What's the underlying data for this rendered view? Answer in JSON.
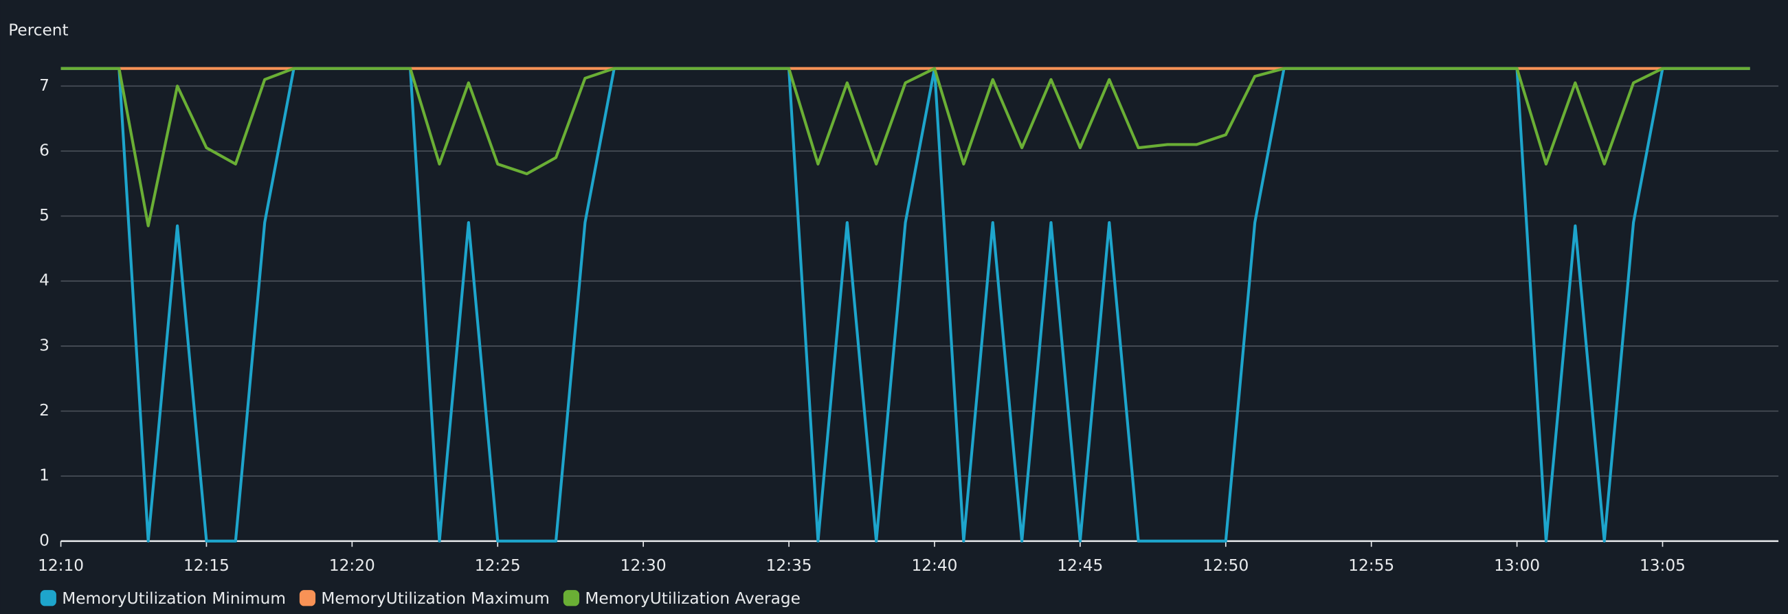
{
  "chart_data": {
    "type": "line",
    "y_label": "Percent",
    "x": [
      "12:10",
      "12:11",
      "12:12",
      "12:13",
      "12:14",
      "12:15",
      "12:16",
      "12:17",
      "12:18",
      "12:19",
      "12:20",
      "12:21",
      "12:22",
      "12:23",
      "12:24",
      "12:25",
      "12:26",
      "12:27",
      "12:28",
      "12:29",
      "12:30",
      "12:31",
      "12:32",
      "12:33",
      "12:34",
      "12:35",
      "12:36",
      "12:37",
      "12:38",
      "12:39",
      "12:40",
      "12:41",
      "12:42",
      "12:43",
      "12:44",
      "12:45",
      "12:46",
      "12:47",
      "12:48",
      "12:49",
      "12:50",
      "12:51",
      "12:52",
      "12:53",
      "12:54",
      "12:55",
      "12:56",
      "12:57",
      "12:58",
      "12:59",
      "13:00",
      "13:01",
      "13:02",
      "13:03",
      "13:04",
      "13:05",
      "13:06",
      "13:07",
      "13:08"
    ],
    "series": [
      {
        "name": "MemoryUtilization Minimum",
        "color": "#1ea5cc",
        "values": [
          7.27,
          7.27,
          7.27,
          0,
          4.85,
          0,
          0,
          4.9,
          7.27,
          7.27,
          7.27,
          7.27,
          7.27,
          0,
          4.9,
          0,
          0,
          0,
          4.9,
          7.27,
          7.27,
          7.27,
          7.27,
          7.27,
          7.27,
          7.27,
          0,
          4.9,
          0,
          4.9,
          7.27,
          0,
          4.9,
          0,
          4.9,
          0,
          4.9,
          0,
          0,
          0,
          0,
          4.9,
          7.27,
          7.27,
          7.27,
          7.27,
          7.27,
          7.27,
          7.27,
          7.27,
          7.27,
          0,
          4.85,
          0,
          4.9,
          7.27,
          7.27,
          7.27,
          7.27
        ]
      },
      {
        "name": "MemoryUtilization Maximum",
        "color": "#f89256",
        "values": [
          7.27,
          7.27,
          7.27,
          7.27,
          7.27,
          7.27,
          7.27,
          7.27,
          7.27,
          7.27,
          7.27,
          7.27,
          7.27,
          7.27,
          7.27,
          7.27,
          7.27,
          7.27,
          7.27,
          7.27,
          7.27,
          7.27,
          7.27,
          7.27,
          7.27,
          7.27,
          7.27,
          7.27,
          7.27,
          7.27,
          7.27,
          7.27,
          7.27,
          7.27,
          7.27,
          7.27,
          7.27,
          7.27,
          7.27,
          7.27,
          7.27,
          7.27,
          7.27,
          7.27,
          7.27,
          7.27,
          7.27,
          7.27,
          7.27,
          7.27,
          7.27,
          7.27,
          7.27,
          7.27,
          7.27,
          7.27,
          7.27,
          7.27,
          7.27
        ]
      },
      {
        "name": "MemoryUtilization Average",
        "color": "#6aaf35",
        "values": [
          7.27,
          7.27,
          7.27,
          4.85,
          7.0,
          6.05,
          5.8,
          7.1,
          7.27,
          7.27,
          7.27,
          7.27,
          7.27,
          5.8,
          7.05,
          5.8,
          5.65,
          5.9,
          7.12,
          7.27,
          7.27,
          7.27,
          7.27,
          7.27,
          7.27,
          7.27,
          5.8,
          7.05,
          5.8,
          7.05,
          7.27,
          5.8,
          7.1,
          6.05,
          7.1,
          6.05,
          7.1,
          6.05,
          6.1,
          6.1,
          6.25,
          7.15,
          7.27,
          7.27,
          7.27,
          7.27,
          7.27,
          7.27,
          7.27,
          7.27,
          7.27,
          5.8,
          7.05,
          5.8,
          7.05,
          7.27,
          7.27,
          7.27,
          7.27
        ]
      }
    ],
    "xlim": [
      "12:10",
      "13:08"
    ],
    "xticks": [
      "12:10",
      "12:15",
      "12:20",
      "12:25",
      "12:30",
      "12:35",
      "12:40",
      "12:45",
      "12:50",
      "12:55",
      "13:00",
      "13:05"
    ],
    "ylim": [
      0,
      7.5
    ],
    "yticks": [
      0,
      1,
      2,
      3,
      4,
      5,
      6,
      7
    ],
    "grid": true
  }
}
